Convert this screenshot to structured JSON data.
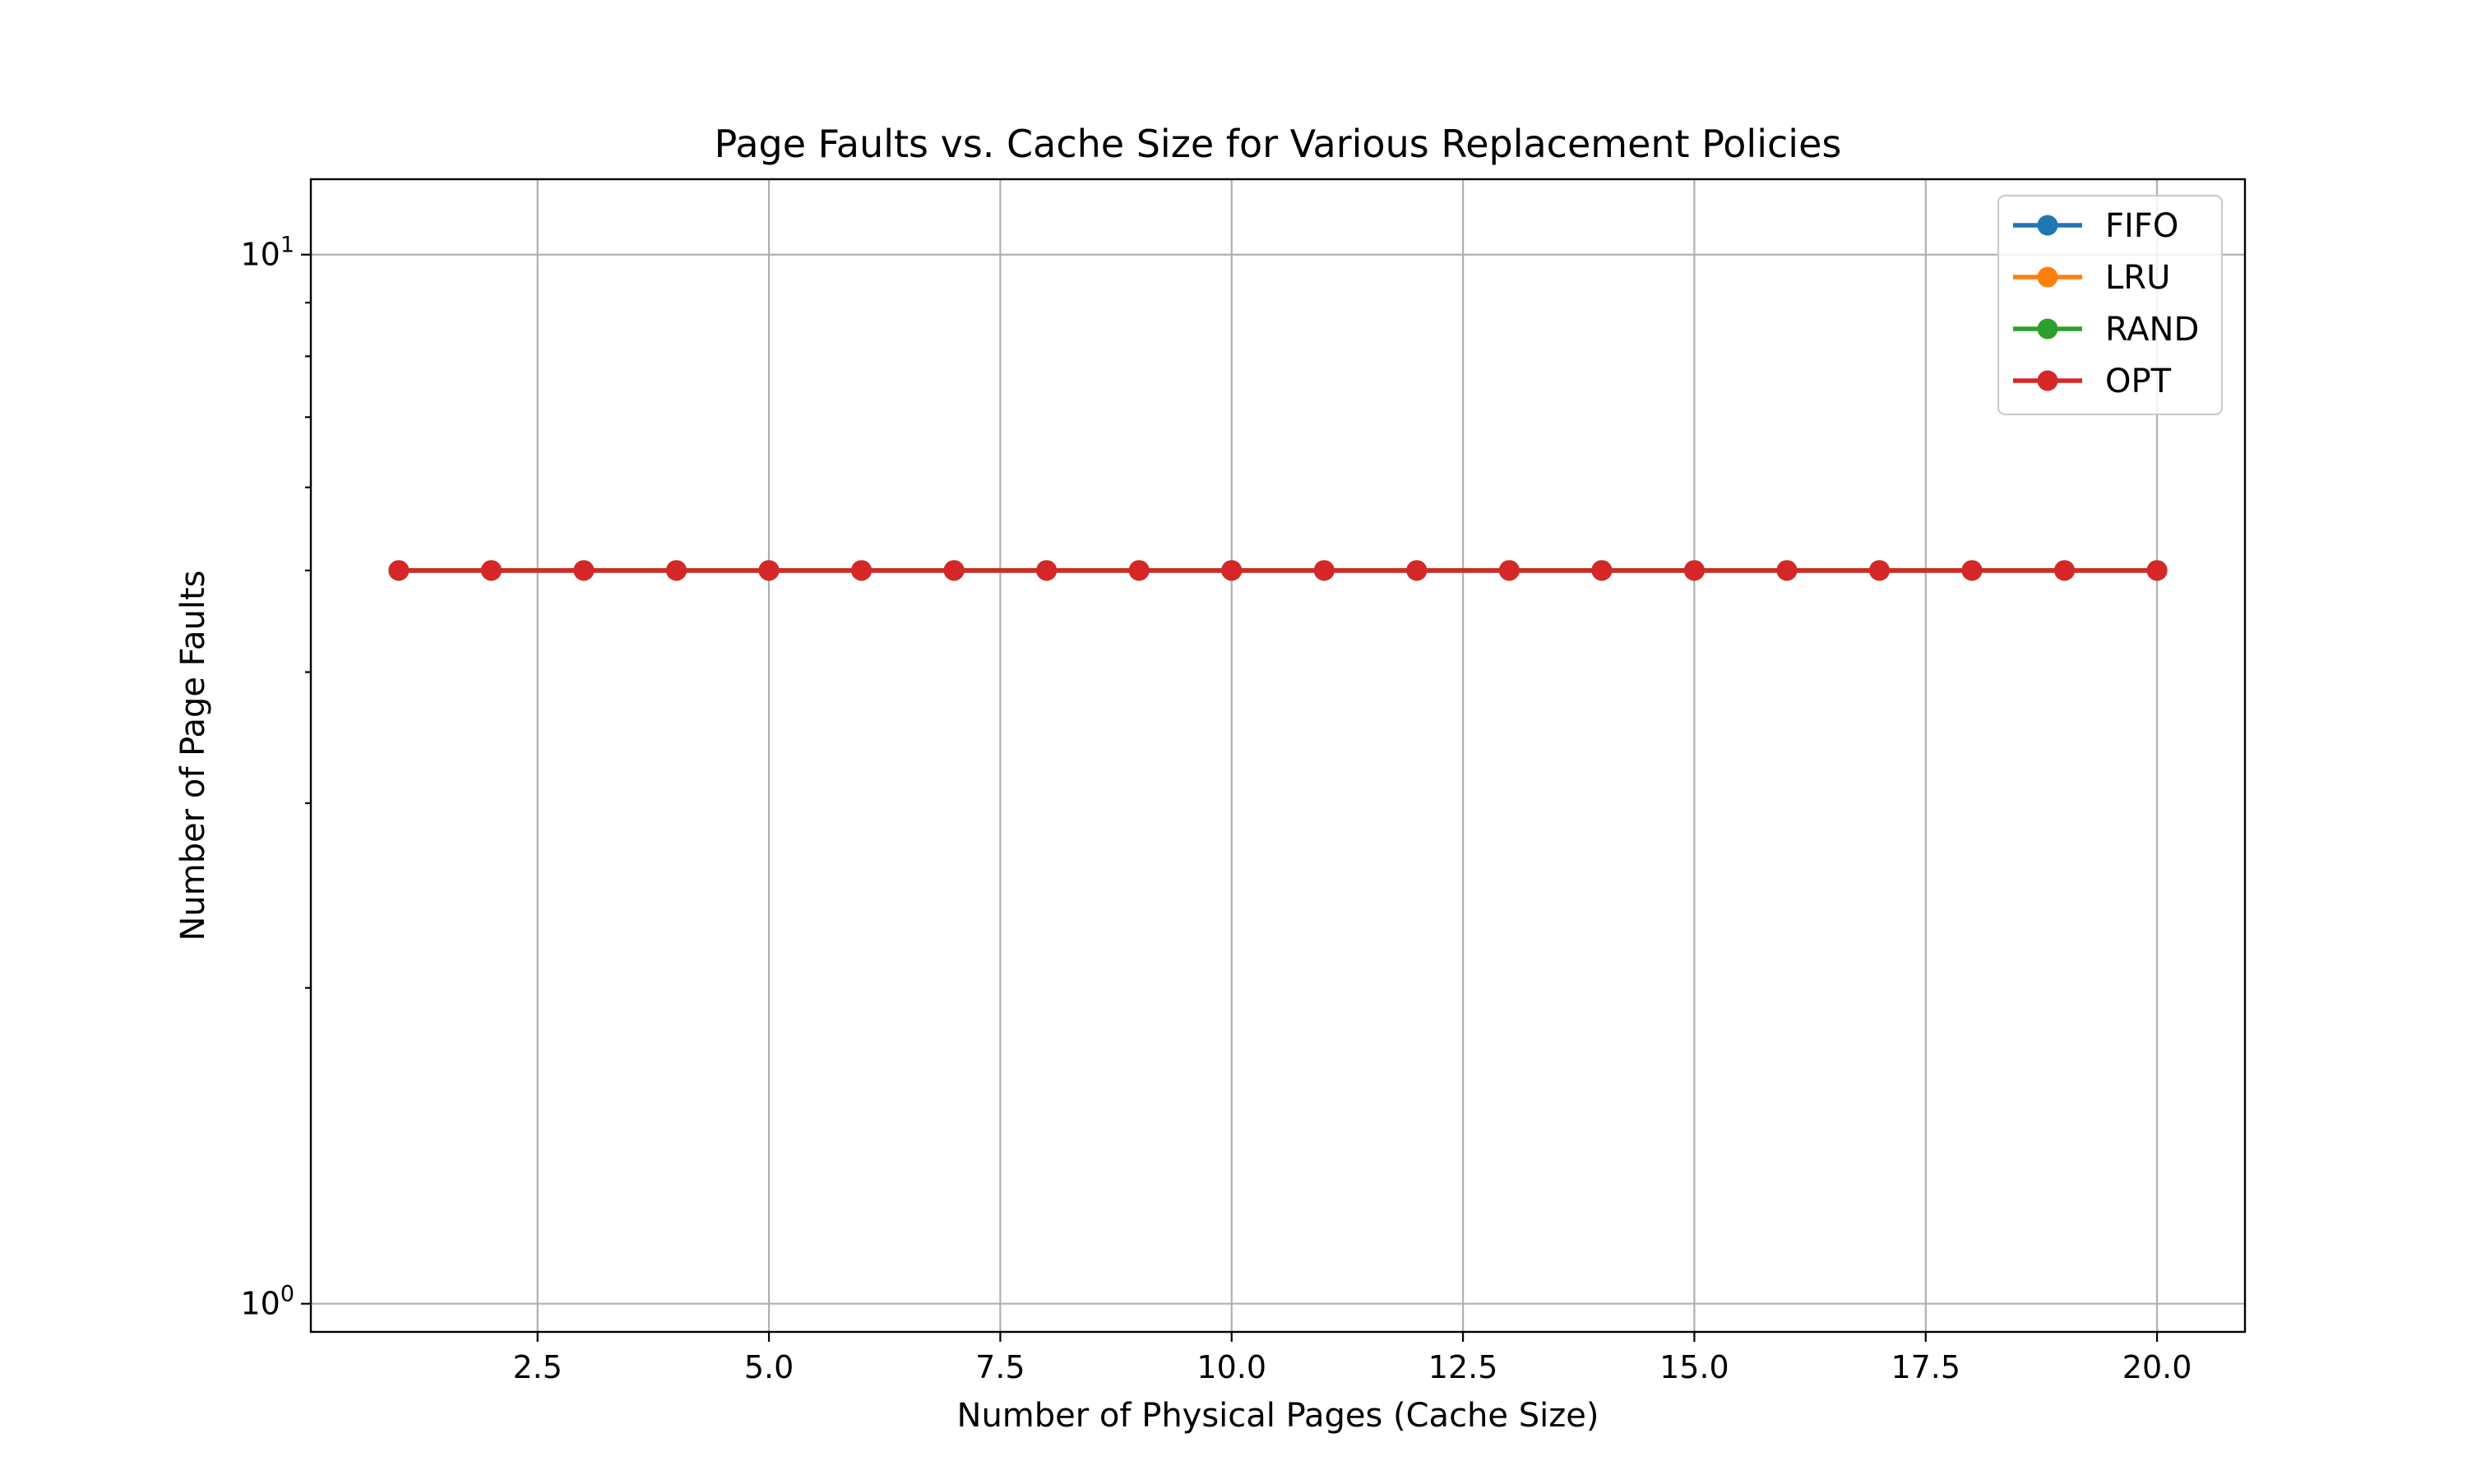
{
  "chart_data": {
    "type": "line",
    "title": "Page Faults vs. Cache Size for Various Replacement Policies",
    "xlabel": "Number of Physical Pages (Cache Size)",
    "ylabel": "Number of Page Faults",
    "xlim": [
      0.05,
      20.95
    ],
    "ylim": [
      0.94,
      11.8
    ],
    "yscale": "log",
    "grid": true,
    "legend_position": "top-right",
    "x_ticks": [
      2.5,
      5.0,
      7.5,
      10.0,
      12.5,
      15.0,
      17.5,
      20.0
    ],
    "x_tick_labels": [
      "2.5",
      "5.0",
      "7.5",
      "10.0",
      "12.5",
      "15.0",
      "17.5",
      "20.0"
    ],
    "y_ticks": [
      1,
      10
    ],
    "y_tick_labels": [
      {
        "base": "10",
        "exp": "0"
      },
      {
        "base": "10",
        "exp": "1"
      }
    ],
    "y_minor_ticks": [
      2,
      3,
      4,
      5,
      6,
      7,
      8,
      9
    ],
    "x": [
      1,
      2,
      3,
      4,
      5,
      6,
      7,
      8,
      9,
      10,
      11,
      12,
      13,
      14,
      15,
      16,
      17,
      18,
      19,
      20
    ],
    "series": [
      {
        "name": "FIFO",
        "color": "#1f77b4",
        "values": [
          5,
          5,
          5,
          5,
          5,
          5,
          5,
          5,
          5,
          5,
          5,
          5,
          5,
          5,
          5,
          5,
          5,
          5,
          5,
          5
        ]
      },
      {
        "name": "LRU",
        "color": "#ff7f0e",
        "values": [
          5,
          5,
          5,
          5,
          5,
          5,
          5,
          5,
          5,
          5,
          5,
          5,
          5,
          5,
          5,
          5,
          5,
          5,
          5,
          5
        ]
      },
      {
        "name": "RAND",
        "color": "#2ca02c",
        "values": [
          5,
          5,
          5,
          5,
          5,
          5,
          5,
          5,
          5,
          5,
          5,
          5,
          5,
          5,
          5,
          5,
          5,
          5,
          5,
          5
        ]
      },
      {
        "name": "OPT",
        "color": "#d62728",
        "values": [
          5,
          5,
          5,
          5,
          5,
          5,
          5,
          5,
          5,
          5,
          5,
          5,
          5,
          5,
          5,
          5,
          5,
          5,
          5,
          5
        ]
      }
    ]
  }
}
